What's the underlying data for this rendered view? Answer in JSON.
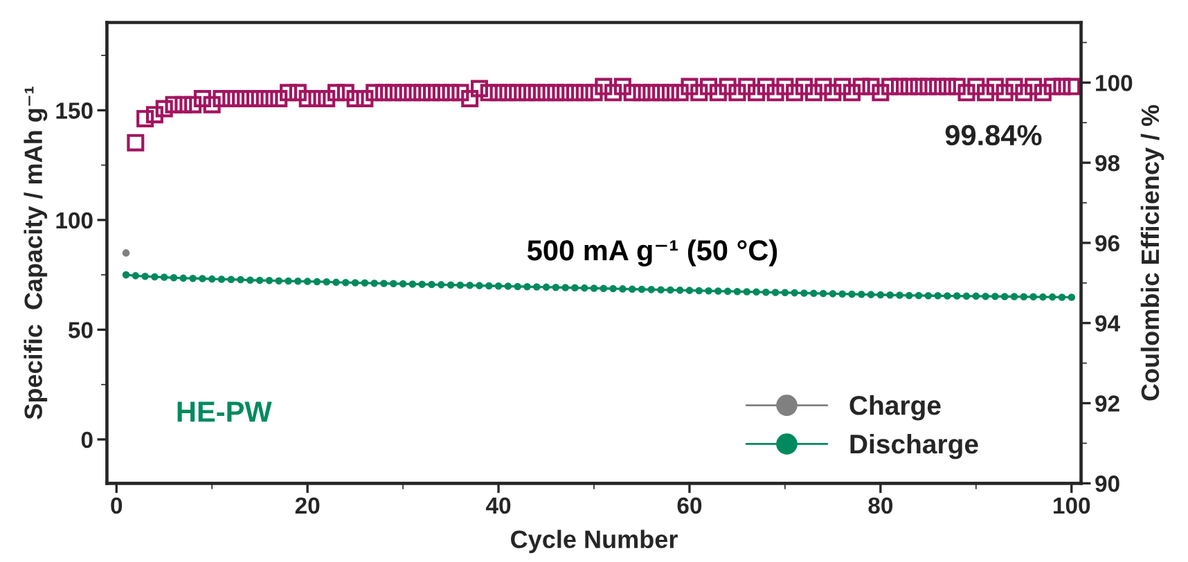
{
  "chart_data": {
    "type": "line",
    "xlabel": "Cycle Number",
    "ylabel": "Specific  Capacity / mAh g⁻¹",
    "y2label": "Coulombic Efficiency / %",
    "xlim": [
      -1,
      101
    ],
    "xticks": [
      0,
      20,
      40,
      60,
      80,
      100
    ],
    "ylim": [
      -20,
      190
    ],
    "yticks": [
      0,
      50,
      100,
      150
    ],
    "y2lim": [
      90,
      101.5
    ],
    "y2ticks": [
      90,
      92,
      94,
      96,
      98,
      100
    ],
    "legend": "bottom right",
    "grid": false,
    "line_style": "solid",
    "annotations": [
      "500 mA g⁻¹ (50 °C)",
      "99.84%",
      "HE-PW"
    ],
    "series": [
      {
        "name": "Charge",
        "marker": "circle",
        "color": "#808080",
        "x": [
          1
        ],
        "values": [
          85
        ]
      },
      {
        "name": "Discharge",
        "marker": "circle",
        "color": "#008a5e",
        "x": [
          1,
          2,
          3,
          4,
          5,
          6,
          7,
          8,
          9,
          10,
          11,
          12,
          13,
          14,
          15,
          16,
          17,
          18,
          19,
          20,
          21,
          22,
          23,
          24,
          25,
          26,
          27,
          28,
          29,
          30,
          31,
          32,
          33,
          34,
          35,
          36,
          37,
          38,
          39,
          40,
          41,
          42,
          43,
          44,
          45,
          46,
          47,
          48,
          49,
          50,
          51,
          52,
          53,
          54,
          55,
          56,
          57,
          58,
          59,
          60,
          61,
          62,
          63,
          64,
          65,
          66,
          67,
          68,
          69,
          70,
          71,
          72,
          73,
          74,
          75,
          76,
          77,
          78,
          79,
          80,
          81,
          82,
          83,
          84,
          85,
          86,
          87,
          88,
          89,
          90,
          91,
          92,
          93,
          94,
          95,
          96,
          97,
          98,
          99,
          100
        ],
        "values": [
          75.0,
          74.6,
          74.3,
          74.1,
          73.9,
          73.7,
          73.5,
          73.4,
          73.3,
          73.1,
          73.0,
          72.9,
          72.8,
          72.6,
          72.5,
          72.4,
          72.3,
          72.2,
          72.1,
          72.0,
          71.9,
          71.8,
          71.6,
          71.5,
          71.4,
          71.3,
          71.2,
          71.1,
          71.0,
          70.9,
          70.8,
          70.7,
          70.6,
          70.5,
          70.4,
          70.3,
          70.2,
          70.1,
          70.0,
          69.9,
          69.8,
          69.7,
          69.6,
          69.5,
          69.4,
          69.3,
          69.2,
          69.1,
          69.0,
          68.9,
          68.8,
          68.7,
          68.6,
          68.5,
          68.4,
          68.3,
          68.2,
          68.1,
          68.0,
          67.9,
          67.8,
          67.7,
          67.6,
          67.5,
          67.4,
          67.3,
          67.2,
          67.1,
          67.0,
          66.9,
          66.8,
          66.7,
          66.6,
          66.5,
          66.4,
          66.3,
          66.2,
          66.1,
          66.0,
          65.9,
          65.8,
          65.7,
          65.6,
          65.6,
          65.5,
          65.5,
          65.4,
          65.4,
          65.3,
          65.3,
          65.2,
          65.2,
          65.1,
          65.1,
          65.0,
          65.0,
          64.9,
          64.9,
          64.8,
          64.8
        ]
      },
      {
        "type": "scatter",
        "marker": "square",
        "axis": "y2",
        "color": "#a3155f",
        "x": [
          2,
          3,
          4,
          5,
          6,
          7,
          8,
          9,
          10,
          11,
          12,
          13,
          14,
          15,
          16,
          17,
          18,
          19,
          20,
          21,
          22,
          23,
          24,
          25,
          26,
          27,
          28,
          29,
          30,
          31,
          32,
          33,
          34,
          35,
          36,
          37,
          38,
          39,
          40,
          41,
          42,
          43,
          44,
          45,
          46,
          47,
          48,
          49,
          50,
          51,
          52,
          53,
          54,
          55,
          56,
          57,
          58,
          59,
          60,
          61,
          62,
          63,
          64,
          65,
          66,
          67,
          68,
          69,
          70,
          71,
          72,
          73,
          74,
          75,
          76,
          77,
          78,
          79,
          80,
          81,
          82,
          83,
          84,
          85,
          86,
          87,
          88,
          89,
          90,
          91,
          92,
          93,
          94,
          95,
          96,
          97,
          98,
          99,
          100
        ],
        "values": [
          98.5,
          99.1,
          99.2,
          99.35,
          99.45,
          99.45,
          99.45,
          99.6,
          99.45,
          99.6,
          99.6,
          99.6,
          99.6,
          99.6,
          99.6,
          99.6,
          99.75,
          99.75,
          99.6,
          99.6,
          99.6,
          99.75,
          99.75,
          99.6,
          99.6,
          99.75,
          99.75,
          99.75,
          99.75,
          99.75,
          99.75,
          99.75,
          99.75,
          99.75,
          99.75,
          99.6,
          99.85,
          99.75,
          99.75,
          99.75,
          99.75,
          99.75,
          99.75,
          99.75,
          99.75,
          99.75,
          99.75,
          99.75,
          99.75,
          99.9,
          99.75,
          99.9,
          99.75,
          99.75,
          99.75,
          99.75,
          99.75,
          99.75,
          99.9,
          99.75,
          99.9,
          99.75,
          99.9,
          99.75,
          99.9,
          99.75,
          99.9,
          99.75,
          99.9,
          99.75,
          99.9,
          99.75,
          99.9,
          99.75,
          99.9,
          99.75,
          99.9,
          99.9,
          99.75,
          99.9,
          99.9,
          99.9,
          99.9,
          99.9,
          99.9,
          99.9,
          99.9,
          99.75,
          99.9,
          99.75,
          99.9,
          99.75,
          99.9,
          99.75,
          99.9,
          99.75,
          99.9,
          99.9,
          99.9
        ]
      }
    ]
  }
}
